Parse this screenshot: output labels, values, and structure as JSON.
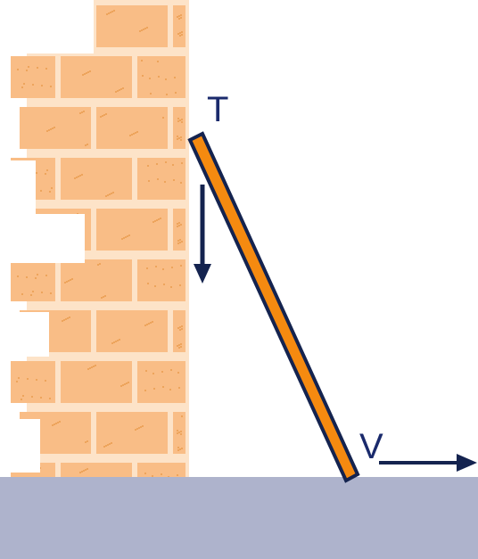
{
  "labels": {
    "top": "T",
    "bottom": "V"
  },
  "colors": {
    "background": "#ffffff",
    "brick": "#f9bd86",
    "mortar": "#fde3c8",
    "brick_speckle": "#e89a4a",
    "ladder_fill": "#f58a10",
    "ladder_outline": "#14234f",
    "ground": "#aeb3cc",
    "arrow": "#14234f",
    "label": "#1a2a6c"
  },
  "icons": {
    "wall": "brick-wall",
    "ladder": "ladder-rod",
    "down_arrow": "arrow-down-icon",
    "right_arrow": "arrow-right-icon"
  }
}
